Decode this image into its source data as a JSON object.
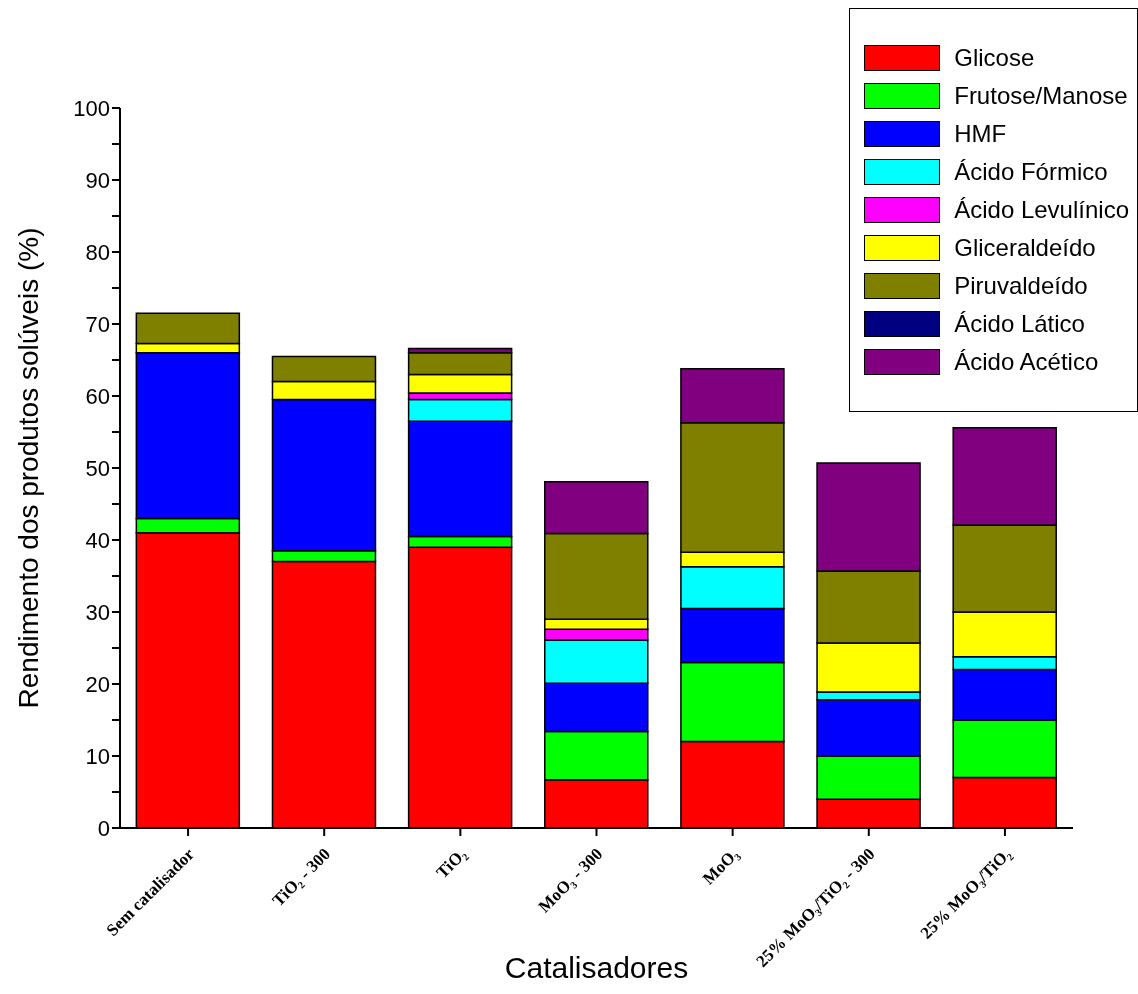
{
  "chart_data": {
    "type": "bar",
    "stacked": true,
    "xlabel": "Catalisadores",
    "ylabel": "Rendimento dos produtos solúveis (%)",
    "categories": [
      "Sem catalisador",
      "TiO₂ - 300",
      "TiO₂",
      "MoO₃ - 300",
      "MoO₃",
      "25% MoO₃/TiO₂ - 300",
      "25% MoO₃/TiO₂"
    ],
    "series": [
      {
        "name": "Glicose",
        "color": "#ff0000",
        "values": [
          41,
          37,
          39,
          6.7,
          12,
          4,
          7
        ]
      },
      {
        "name": "Frutose/Manose",
        "color": "#00ff00",
        "values": [
          2,
          1.5,
          1.5,
          6.7,
          11,
          6,
          8
        ]
      },
      {
        "name": "HMF",
        "color": "#0000ff",
        "values": [
          23,
          21,
          16,
          6.7,
          7.5,
          7.8,
          7
        ]
      },
      {
        "name": "Ácido Fórmico",
        "color": "#00ffff",
        "values": [
          null,
          null,
          3,
          6,
          5.8,
          1.1,
          1.8
        ]
      },
      {
        "name": "Ácido Levulínico",
        "color": "#ff00ff",
        "values": [
          null,
          null,
          0.9,
          1.5,
          null,
          null,
          null
        ]
      },
      {
        "name": "Gliceraldeído",
        "color": "#ffff00",
        "values": [
          1.3,
          2.5,
          2.6,
          1.4,
          2,
          6.8,
          6.2
        ]
      },
      {
        "name": "Piruvaldeído",
        "color": "#808000",
        "values": [
          4.2,
          3.5,
          3,
          11.9,
          18,
          10,
          12.1
        ]
      },
      {
        "name": "Ácido Lático",
        "color": "#000080",
        "values": [
          null,
          null,
          null,
          null,
          null,
          null,
          null
        ]
      },
      {
        "name": "Ácido Acético",
        "color": "#800080",
        "values": [
          null,
          null,
          0.6,
          7.2,
          7.5,
          15,
          13.5
        ]
      }
    ],
    "ylim": [
      0,
      100
    ],
    "yticks": [
      0,
      {
        "value": 5,
        "label": null
      },
      10,
      {
        "value": 15,
        "label": null
      },
      20,
      {
        "value": 25,
        "label": null
      },
      30,
      {
        "value": 35,
        "label": null
      },
      40,
      {
        "value": 45,
        "label": null
      },
      50,
      {
        "value": 55,
        "label": null
      },
      60,
      {
        "value": 65,
        "label": null
      },
      70,
      {
        "value": 75,
        "label": null
      },
      80,
      {
        "value": 85,
        "label": null
      },
      90,
      {
        "value": 95,
        "label": null
      },
      100
    ],
    "grid": false,
    "legend": "top right"
  }
}
